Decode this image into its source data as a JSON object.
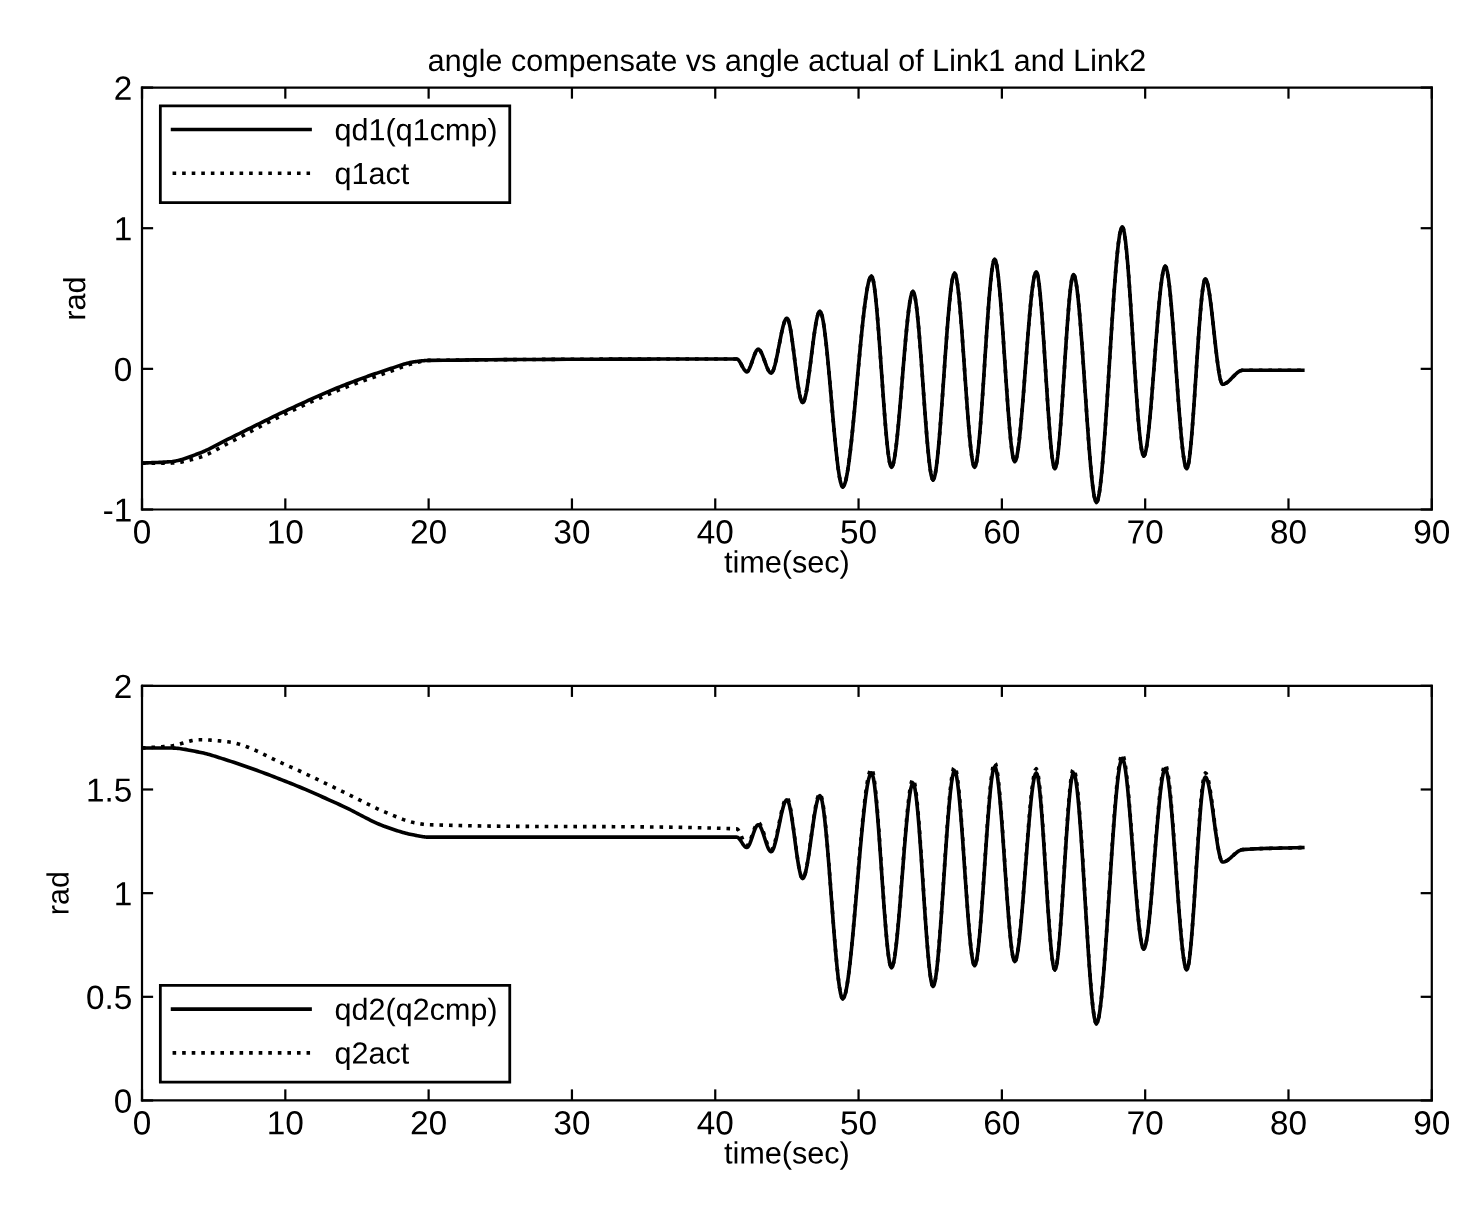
{
  "chart_data": [
    {
      "type": "line",
      "title": "angle compensate vs angle actual of Link1 and Link2",
      "xlabel": "time(sec)",
      "ylabel": "rad",
      "x": [
        0,
        2,
        4,
        6,
        10,
        14,
        17,
        19,
        20,
        41.5,
        42.2,
        43.0,
        43.9,
        45.0,
        46.1,
        47.3,
        48.9,
        50.9,
        52.3,
        53.8,
        55.2,
        56.7,
        58.1,
        59.5,
        60.9,
        62.4,
        63.7,
        65.0,
        66.6,
        68.4,
        69.9,
        71.4,
        72.9,
        74.2,
        75.4,
        76.8,
        81.0
      ],
      "series": [
        {
          "name": "qd1(q1cmp)",
          "color": "#000000",
          "line_style": "solid",
          "values": [
            -0.67,
            -0.66,
            -0.6,
            -0.5,
            -0.3,
            -0.12,
            -0.01,
            0.05,
            0.06,
            0.07,
            -0.02,
            0.14,
            -0.03,
            0.36,
            -0.24,
            0.41,
            -0.84,
            0.66,
            -0.7,
            0.55,
            -0.79,
            0.68,
            -0.7,
            0.78,
            -0.66,
            0.69,
            -0.71,
            0.67,
            -0.95,
            1.01,
            -0.62,
            0.73,
            -0.71,
            0.64,
            -0.11,
            -0.01,
            -0.01
          ]
        },
        {
          "name": "q1act",
          "color": "#000000",
          "line_style": "dotted",
          "values": [
            -0.67,
            -0.67,
            -0.63,
            -0.53,
            -0.32,
            -0.14,
            -0.03,
            0.04,
            0.06,
            0.07,
            -0.02,
            0.14,
            -0.03,
            0.36,
            -0.24,
            0.41,
            -0.84,
            0.66,
            -0.7,
            0.55,
            -0.79,
            0.68,
            -0.7,
            0.78,
            -0.66,
            0.69,
            -0.71,
            0.67,
            -0.95,
            1.01,
            -0.62,
            0.73,
            -0.71,
            0.64,
            -0.11,
            -0.01,
            -0.01
          ]
        }
      ],
      "xlim": [
        0,
        90
      ],
      "xticks": [
        0,
        10,
        20,
        30,
        40,
        50,
        60,
        70,
        80,
        90
      ],
      "ylim": [
        -1,
        2
      ],
      "yticks": [
        -1,
        0,
        1,
        2
      ],
      "legend": "top left"
    },
    {
      "type": "line",
      "xlabel": "time(sec)",
      "ylabel": "rad",
      "x": [
        0,
        2,
        4,
        6,
        10,
        14,
        17,
        19,
        20,
        41.5,
        42.2,
        43.0,
        43.9,
        45.0,
        46.1,
        47.3,
        48.9,
        50.9,
        52.3,
        53.8,
        55.2,
        56.7,
        58.1,
        59.5,
        60.9,
        62.4,
        63.7,
        65.0,
        66.6,
        68.4,
        69.9,
        71.4,
        72.9,
        74.2,
        75.4,
        76.8,
        81.0
      ],
      "series": [
        {
          "name": "qd2(q2cmp)",
          "color": "#000000",
          "line_style": "solid",
          "values": [
            1.7,
            1.7,
            1.68,
            1.64,
            1.54,
            1.42,
            1.32,
            1.28,
            1.27,
            1.27,
            1.22,
            1.33,
            1.2,
            1.45,
            1.07,
            1.47,
            0.49,
            1.58,
            0.64,
            1.53,
            0.55,
            1.59,
            0.65,
            1.61,
            0.67,
            1.58,
            0.63,
            1.58,
            0.37,
            1.65,
            0.73,
            1.6,
            0.63,
            1.56,
            1.15,
            1.21,
            1.22
          ]
        },
        {
          "name": "q2act",
          "color": "#000000",
          "line_style": "dotted",
          "values": [
            1.7,
            1.71,
            1.74,
            1.73,
            1.62,
            1.49,
            1.39,
            1.34,
            1.33,
            1.31,
            1.23,
            1.34,
            1.21,
            1.46,
            1.07,
            1.48,
            0.49,
            1.6,
            0.64,
            1.55,
            0.55,
            1.61,
            0.65,
            1.63,
            0.67,
            1.6,
            0.63,
            1.6,
            0.37,
            1.67,
            0.73,
            1.62,
            0.63,
            1.58,
            1.15,
            1.21,
            1.22
          ]
        }
      ],
      "xlim": [
        0,
        90
      ],
      "xticks": [
        0,
        10,
        20,
        30,
        40,
        50,
        60,
        70,
        80,
        90
      ],
      "ylim": [
        0,
        2
      ],
      "yticks": [
        0,
        0.5,
        1,
        1.5,
        2
      ],
      "legend": "bottom left"
    }
  ]
}
